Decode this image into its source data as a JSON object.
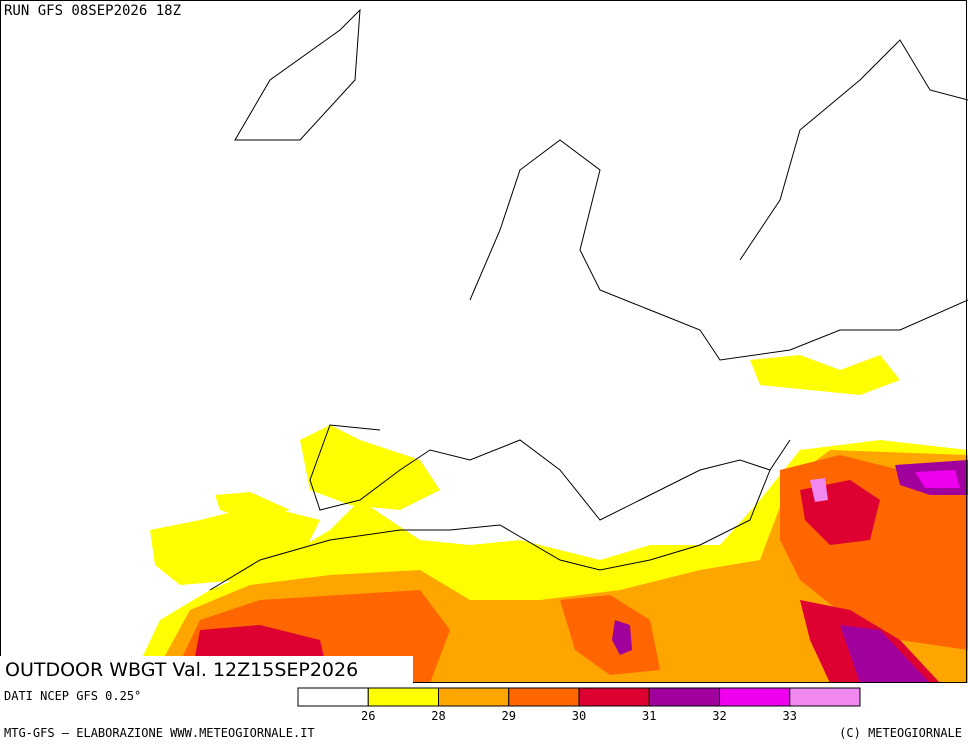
{
  "header": {
    "run": "RUN GFS 08SEP2026 18Z"
  },
  "title": "OUTDOOR WBGT Val. 12Z15SEP2026",
  "source": "DATI NCEP GFS 0.25°",
  "footer": {
    "left": "MTG-GFS — ELABORAZIONE WWW.METEOGIORNALE.IT",
    "right": "(C) METEOGIORNALE"
  },
  "legend": {
    "colors": [
      "#ffffff",
      "#ffff00",
      "#ffa500",
      "#ff6600",
      "#dd0030",
      "#a0009c",
      "#ee00ee",
      "#f088f0"
    ],
    "ticks": [
      26,
      28,
      29,
      30,
      31,
      32,
      33
    ]
  }
}
